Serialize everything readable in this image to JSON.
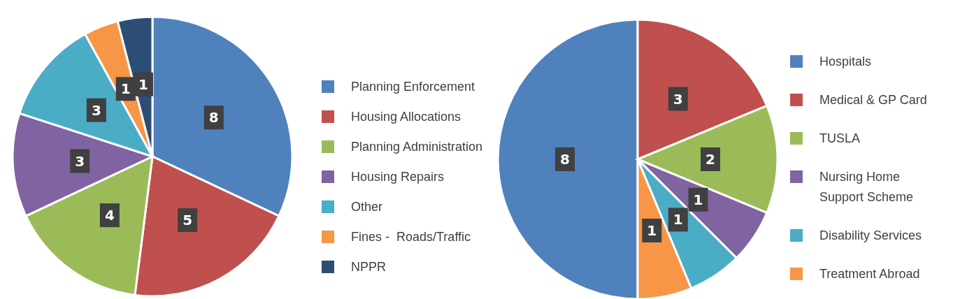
{
  "chart_data": [
    {
      "type": "pie",
      "categories": [
        "Planning Enforcement",
        "Housing Allocations",
        "Planning Administration",
        "Housing Repairs",
        "Other",
        "Fines -  Roads/Traffic",
        "NPPR"
      ],
      "values": [
        8,
        5,
        4,
        3,
        3,
        1,
        1
      ],
      "colors": [
        "#4f81bd",
        "#c0504d",
        "#9bbb59",
        "#8064a2",
        "#4bacc6",
        "#f79646",
        "#2c4d75"
      ],
      "data_labels": true,
      "legend": "right"
    },
    {
      "type": "pie",
      "categories": [
        "Hospitals",
        "Medical & GP Card",
        "TUSLA",
        "Nursing Home Support Scheme",
        "Disability Services",
        "Treatment Abroad"
      ],
      "values": [
        8,
        3,
        2,
        1,
        1,
        1
      ],
      "colors": [
        "#4f81bd",
        "#c0504d",
        "#9bbb59",
        "#8064a2",
        "#4bacc6",
        "#f79646"
      ],
      "data_labels": true,
      "legend": "right"
    }
  ]
}
